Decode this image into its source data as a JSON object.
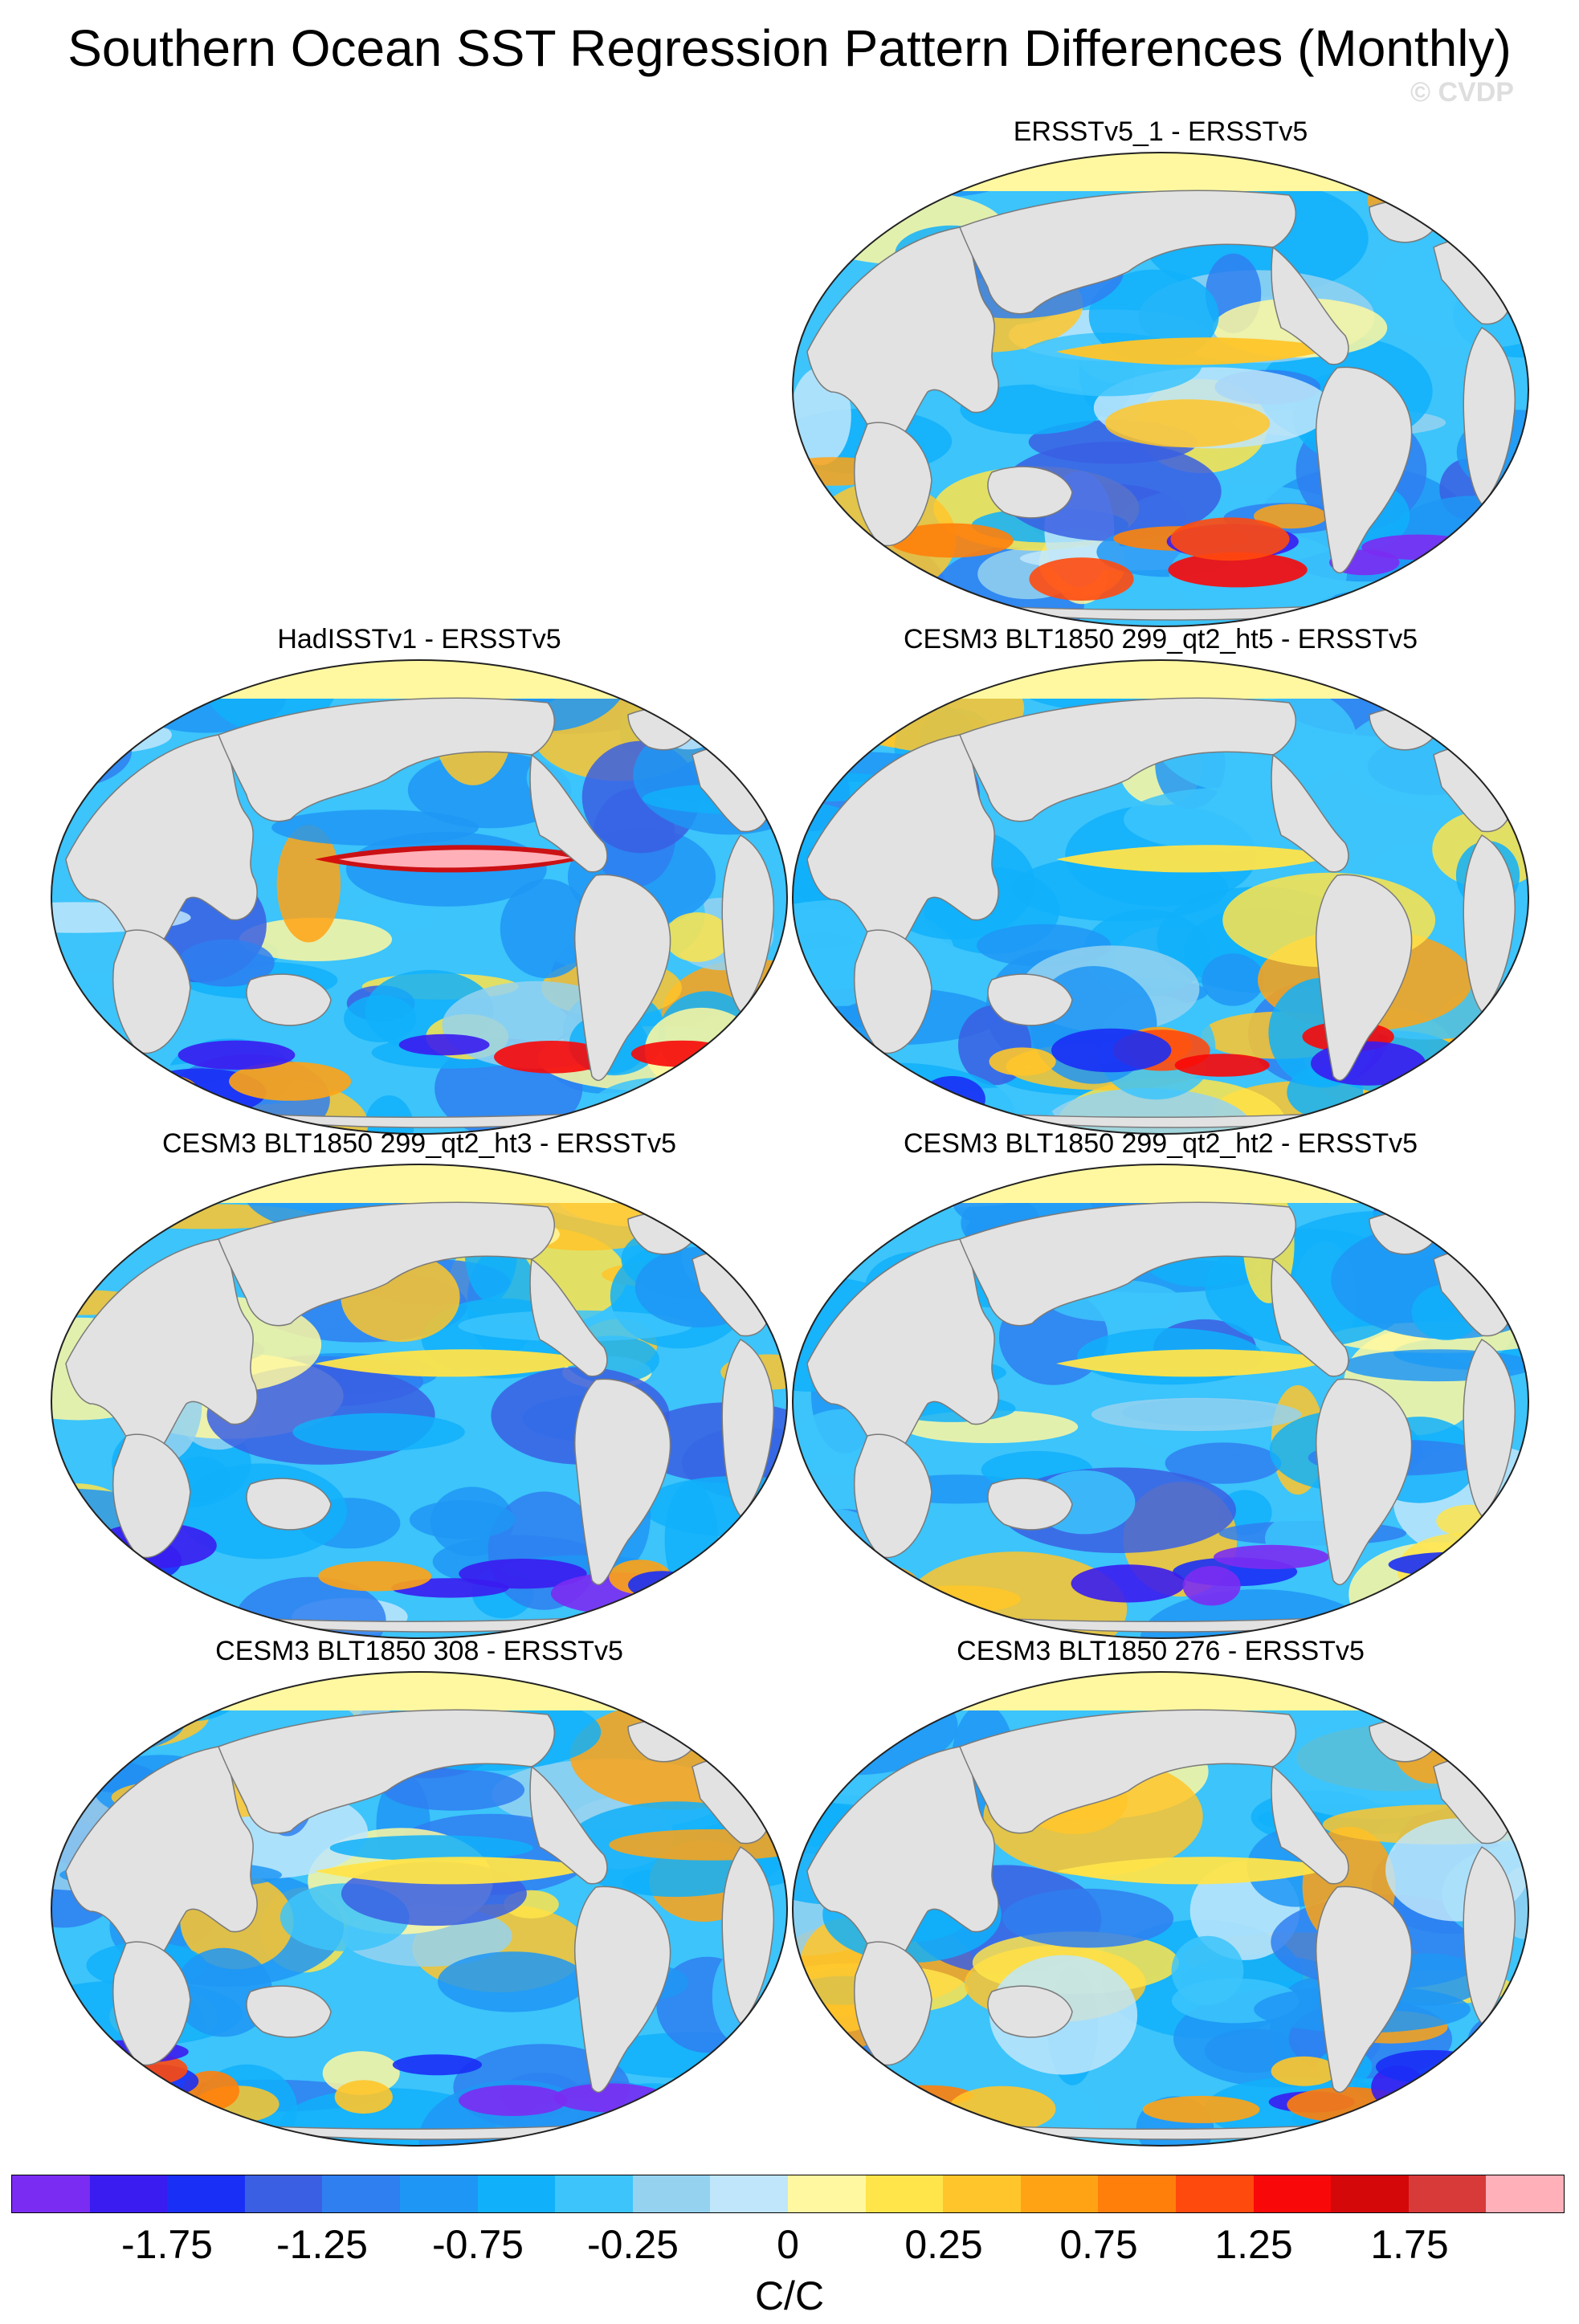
{
  "title": "Southern Ocean SST Regression Pattern Differences (Monthly)",
  "watermark": "© CVDP",
  "panels": [
    {
      "title": "ERSSTv5_1 - ERSSTv5",
      "pattern": 1
    },
    {
      "title": "HadISSTv1 - ERSSTv5",
      "pattern": 2
    },
    {
      "title": "CESM3 BLT1850 299_qt2_ht5 - ERSSTv5",
      "pattern": 3
    },
    {
      "title": "CESM3 BLT1850 299_qt2_ht3 - ERSSTv5",
      "pattern": 4
    },
    {
      "title": "CESM3 BLT1850 299_qt2_ht2 - ERSSTv5",
      "pattern": 5
    },
    {
      "title": "CESM3 BLT1850 308 - ERSSTv5",
      "pattern": 6
    },
    {
      "title": "CESM3 BLT1850 276 - ERSSTv5",
      "pattern": 7
    }
  ],
  "colorbar": {
    "colors": [
      "#7b2cf2",
      "#3a1cf0",
      "#1a2ff5",
      "#3a5fe3",
      "#2f7ff0",
      "#1e96f5",
      "#10b0fa",
      "#3cc4fb",
      "#95d2f0",
      "#bfe6fa",
      "#fff8a0",
      "#ffe44a",
      "#ffc52a",
      "#ffa314",
      "#ff7f0a",
      "#ff4a0e",
      "#f80808",
      "#d40808",
      "#d83a3a",
      "#ffb0b8"
    ],
    "tick_labels": [
      "-1.75",
      "-1.25",
      "-0.75",
      "-0.25",
      "0",
      "0.25",
      "0.75",
      "1.25",
      "1.75"
    ],
    "units": "C/C"
  },
  "land_color": "#e2e2e2"
}
